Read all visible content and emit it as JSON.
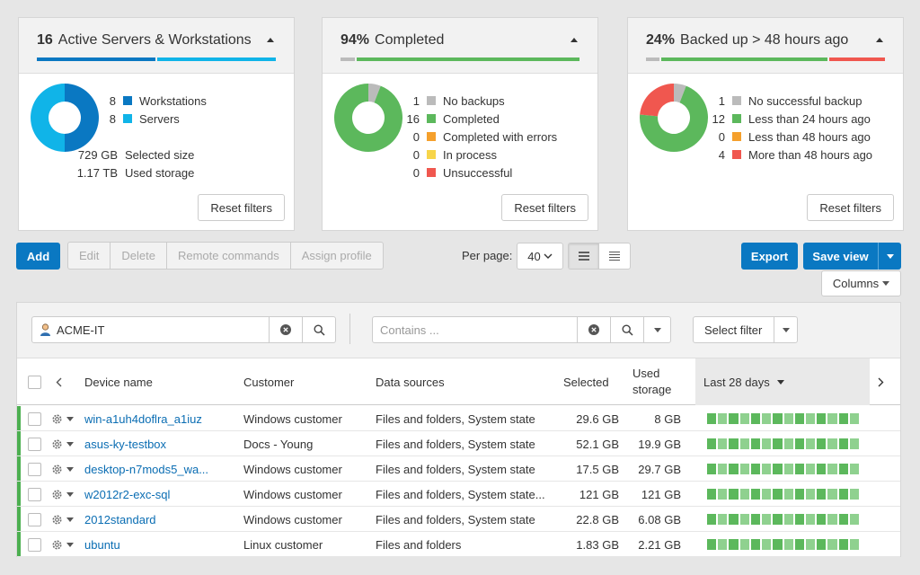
{
  "cards": [
    {
      "count": "16",
      "title": "Active Servers & Workstations",
      "bar_colors": [
        "#0a78c2",
        "#10b4e8"
      ],
      "donut": [
        {
          "value": 8,
          "color": "#0a78c2"
        },
        {
          "value": 8,
          "color": "#10b4e8"
        }
      ],
      "legend": [
        {
          "num": "8",
          "label": "Workstations",
          "color": "#0a78c2"
        },
        {
          "num": "8",
          "label": "Servers",
          "color": "#10b4e8"
        }
      ],
      "stats": [
        {
          "value": "729 GB",
          "label": "Selected size"
        },
        {
          "value": "1.17 TB",
          "label": "Used storage"
        }
      ],
      "reset_label": "Reset filters"
    },
    {
      "count": "94%",
      "title": "Completed",
      "bar_colors": [
        "#bbbbbb",
        "#5cb85c"
      ],
      "donut": [
        {
          "value": 1,
          "color": "#bbbbbb"
        },
        {
          "value": 16,
          "color": "#5cb85c"
        }
      ],
      "legend": [
        {
          "num": "1",
          "label": "No backups",
          "color": "#bbbbbb"
        },
        {
          "num": "16",
          "label": "Completed",
          "color": "#5cb85c"
        },
        {
          "num": "0",
          "label": "Completed with errors",
          "color": "#f5a02c"
        },
        {
          "num": "0",
          "label": "In process",
          "color": "#f7d54a"
        },
        {
          "num": "0",
          "label": "Unsuccessful",
          "color": "#f0574f"
        }
      ],
      "reset_label": "Reset filters"
    },
    {
      "count": "24%",
      "title": "Backed up > 48 hours ago",
      "bar_colors": [
        "#bbbbbb",
        "#5cb85c",
        "#f0574f"
      ],
      "donut": [
        {
          "value": 1,
          "color": "#bbbbbb"
        },
        {
          "value": 12,
          "color": "#5cb85c"
        },
        {
          "value": 4,
          "color": "#f0574f"
        }
      ],
      "legend": [
        {
          "num": "1",
          "label": "No successful backup",
          "color": "#bbbbbb"
        },
        {
          "num": "12",
          "label": "Less than 24 hours ago",
          "color": "#5cb85c"
        },
        {
          "num": "0",
          "label": "Less than 48 hours ago",
          "color": "#f5a02c"
        },
        {
          "num": "4",
          "label": "More than 48 hours ago",
          "color": "#f0574f"
        }
      ],
      "reset_label": "Reset filters"
    }
  ],
  "toolbar": {
    "add_label": "Add",
    "edit_label": "Edit",
    "delete_label": "Delete",
    "remote_label": "Remote commands",
    "assign_label": "Assign profile",
    "per_page_label": "Per page:",
    "per_page_value": "40",
    "export_label": "Export",
    "save_view_label": "Save view",
    "columns_label": "Columns"
  },
  "filters": {
    "customer_value": "ACME-IT",
    "contains_placeholder": "Contains ...",
    "select_filter_label": "Select filter"
  },
  "table": {
    "headers": {
      "device": "Device name",
      "customer": "Customer",
      "sources": "Data sources",
      "selected": "Selected",
      "used": "Used storage",
      "last": "Last 28 days"
    },
    "rows": [
      {
        "device": "win-a1uh4doflra_a1iuz",
        "customer": "Windows customer",
        "sources": "Files and folders, System state",
        "selected": "29.6 GB",
        "used": "8 GB"
      },
      {
        "device": "asus-ky-testbox",
        "customer": "Docs - Young",
        "sources": "Files and folders, System state",
        "selected": "52.1 GB",
        "used": "19.9 GB"
      },
      {
        "device": "desktop-n7mods5_wa...",
        "customer": "Windows customer",
        "sources": "Files and folders, System state",
        "selected": "17.5 GB",
        "used": "29.7 GB"
      },
      {
        "device": "w2012r2-exc-sql",
        "customer": "Windows customer",
        "sources": "Files and folders, System state...",
        "selected": "121 GB",
        "used": "121 GB"
      },
      {
        "device": "2012standard",
        "customer": "Windows customer",
        "sources": "Files and folders, System state",
        "selected": "22.8 GB",
        "used": "6.08 GB"
      },
      {
        "device": "ubuntu",
        "customer": "Linux customer",
        "sources": "Files and folders",
        "selected": "1.83 GB",
        "used": "2.21 GB"
      }
    ]
  },
  "colors": {
    "accent": "#0a78c2",
    "success": "#5cb85c"
  }
}
